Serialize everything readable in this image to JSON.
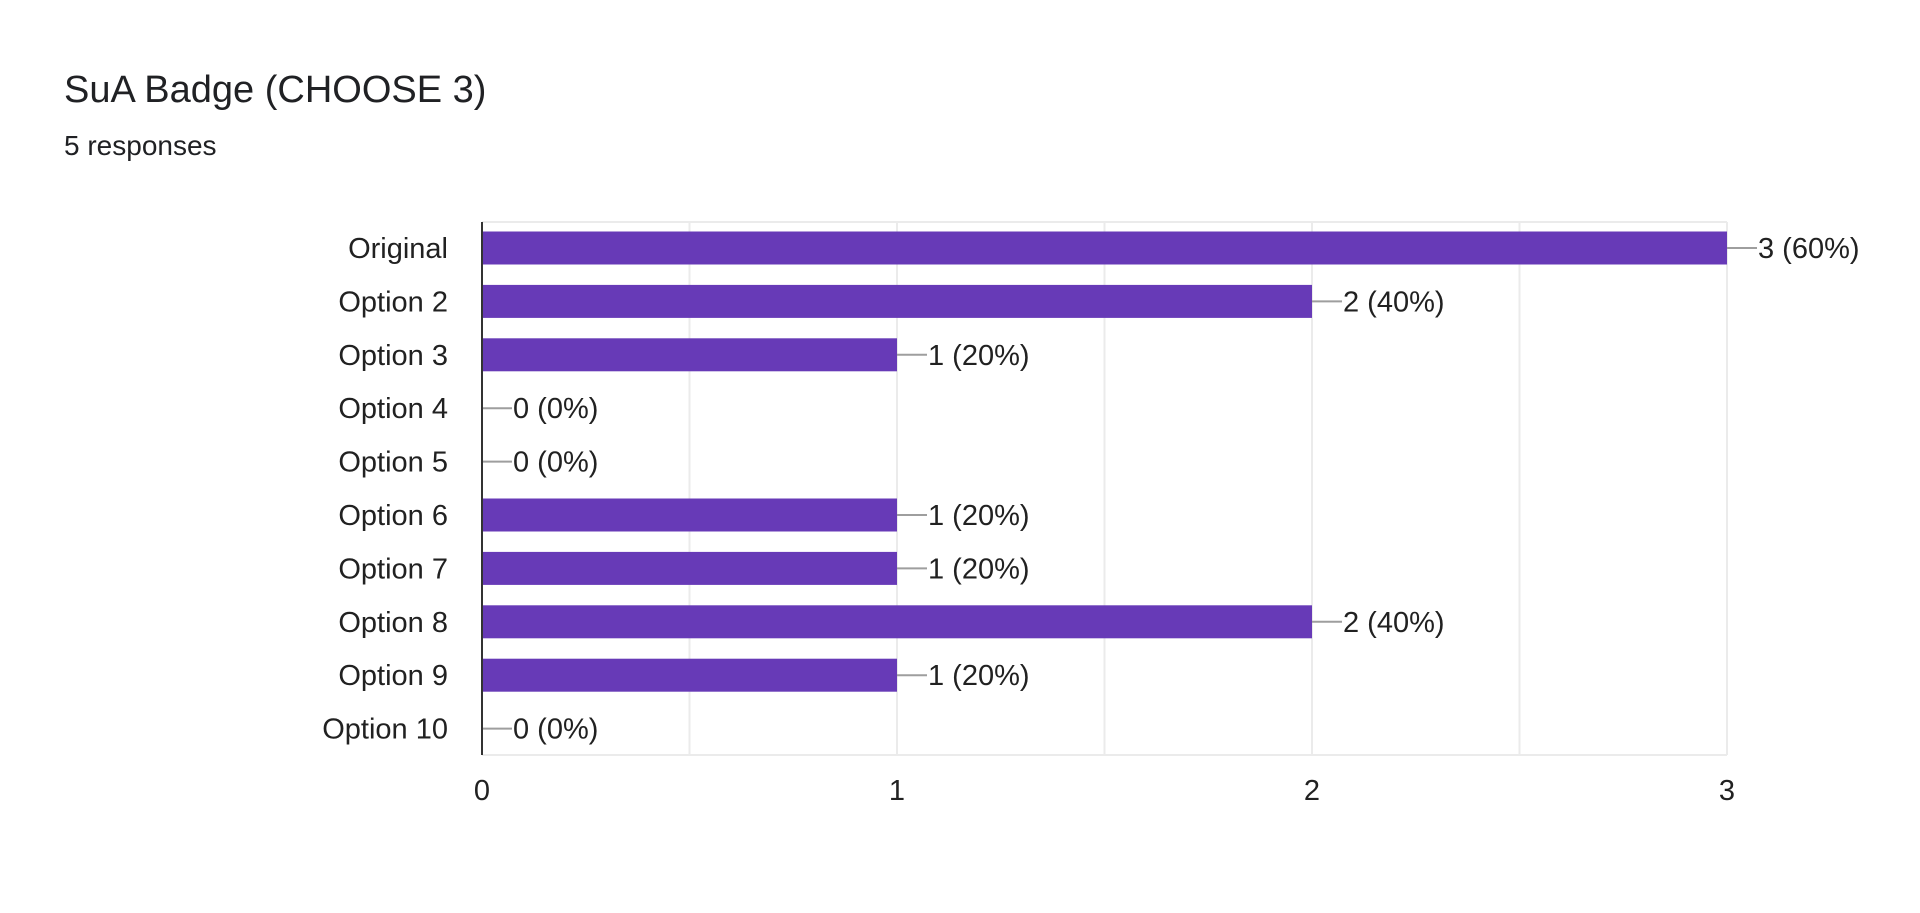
{
  "question": {
    "title": "SuA Badge (CHOOSE 3)",
    "responses": "5 responses"
  },
  "colors": {
    "bar": "#673ab7",
    "gridline": "#ebebeb",
    "axis": "#333333",
    "leader": "#9e9e9e",
    "text": "#212121"
  },
  "chart_data": {
    "type": "bar",
    "orientation": "horizontal",
    "title": "SuA Badge (CHOOSE 3)",
    "subtitle": "5 responses",
    "categories": [
      "Original",
      "Option 2",
      "Option 3",
      "Option 4",
      "Option 5",
      "Option 6",
      "Option 7",
      "Option 8",
      "Option 9",
      "Option 10"
    ],
    "values": [
      3,
      2,
      1,
      0,
      0,
      1,
      1,
      2,
      1,
      0
    ],
    "data_labels": [
      "3 (60%)",
      "2 (40%)",
      "1 (20%)",
      "0 (0%)",
      "0 (0%)",
      "1 (20%)",
      "1 (20%)",
      "2 (40%)",
      "1 (20%)",
      "0 (0%)"
    ],
    "xlim": [
      0,
      3
    ],
    "xticks": [
      "0",
      "1",
      "2",
      "3"
    ],
    "xlabel": "",
    "ylabel": "",
    "grid": true
  }
}
